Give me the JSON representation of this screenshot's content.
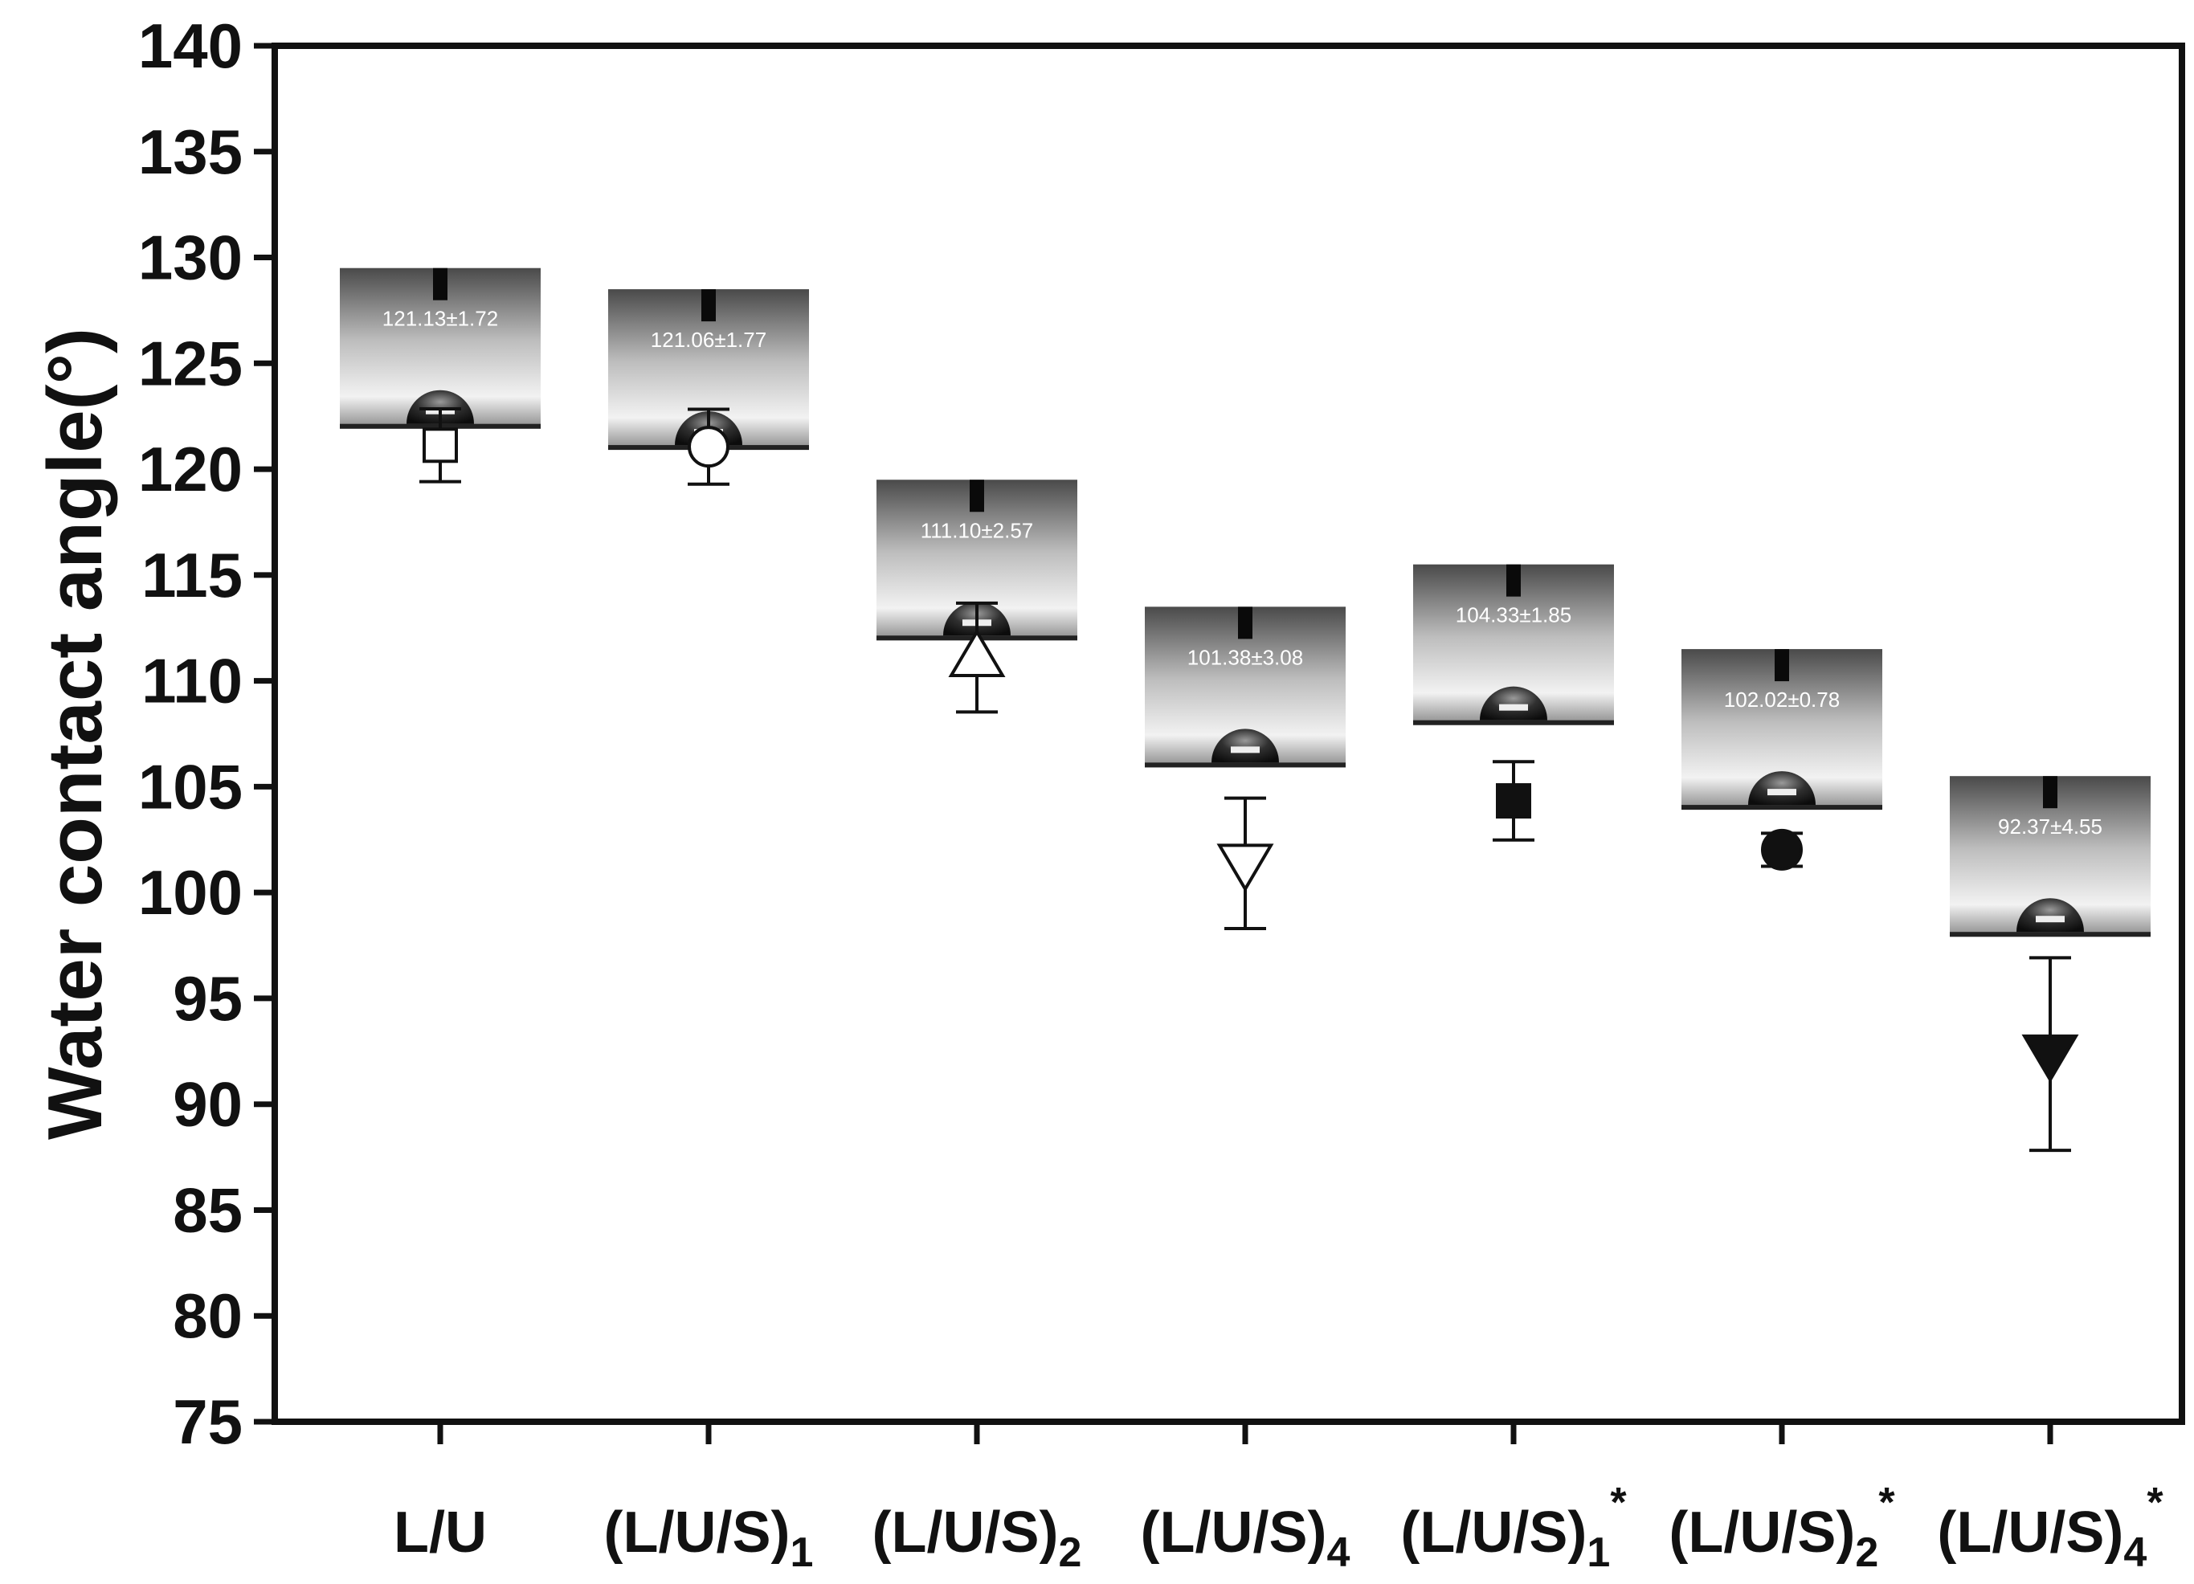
{
  "chart_data": {
    "type": "scatter",
    "ylabel": "Water contact angle(°)",
    "xlabel": "",
    "ylim": [
      75,
      140
    ],
    "yticks": [
      75,
      80,
      85,
      90,
      95,
      100,
      105,
      110,
      115,
      120,
      125,
      130,
      135,
      140
    ],
    "grid": false,
    "categories": [
      {
        "base": "L/U",
        "sub": "",
        "sup": ""
      },
      {
        "base": "(L/U/S)",
        "sub": "1",
        "sup": ""
      },
      {
        "base": "(L/U/S)",
        "sub": "2",
        "sup": ""
      },
      {
        "base": "(L/U/S)",
        "sub": "4",
        "sup": ""
      },
      {
        "base": "(L/U/S)",
        "sub": "1",
        "sup": "*"
      },
      {
        "base": "(L/U/S)",
        "sub": "2",
        "sup": "*"
      },
      {
        "base": "(L/U/S)",
        "sub": "4",
        "sup": "*"
      }
    ],
    "points": [
      {
        "value": 121.13,
        "error": 1.72,
        "marker": "square-open"
      },
      {
        "value": 121.06,
        "error": 1.77,
        "marker": "circle-open"
      },
      {
        "value": 111.1,
        "error": 2.57,
        "marker": "triangle-up-open"
      },
      {
        "value": 101.38,
        "error": 3.08,
        "marker": "triangle-down-open"
      },
      {
        "value": 104.33,
        "error": 1.85,
        "marker": "square-filled"
      },
      {
        "value": 102.02,
        "error": 0.78,
        "marker": "circle-filled"
      },
      {
        "value": 92.37,
        "error": 4.55,
        "marker": "triangle-down-filled"
      }
    ],
    "insets": [
      {
        "label": "121.13±1.72",
        "top_value": 129.5
      },
      {
        "label": "121.06±1.77",
        "top_value": 128.5
      },
      {
        "label": "111.10±2.57",
        "top_value": 119.5
      },
      {
        "label": "101.38±3.08",
        "top_value": 113.5
      },
      {
        "label": "104.33±1.85",
        "top_value": 115.5
      },
      {
        "label": "102.02±0.78",
        "top_value": 111.5
      },
      {
        "label": "92.37±4.55",
        "top_value": 105.5
      }
    ]
  },
  "colors": {
    "axis": "#111111",
    "marker": "#111111",
    "inset_top": "#5a5a5a",
    "inset_mid": "#e6e6e6",
    "inset_base": "#2b2b2b"
  }
}
